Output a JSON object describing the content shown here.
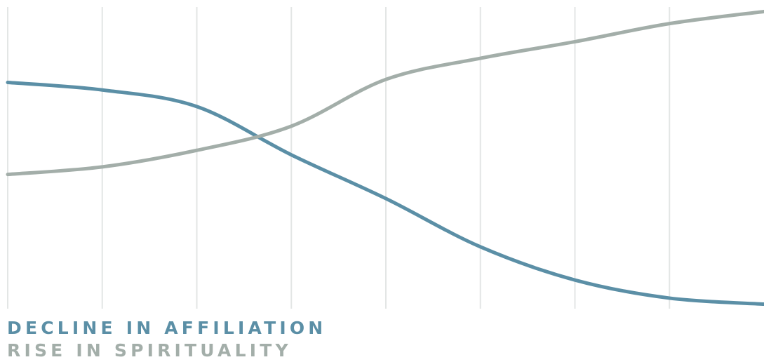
{
  "chart_data": {
    "type": "line",
    "x": [
      0,
      1,
      2,
      3,
      4,
      5,
      6,
      7,
      8
    ],
    "ylim": [
      0,
      100
    ],
    "grid": {
      "vertical": true,
      "horizontal": false
    },
    "legend_position": "bottom-left",
    "series": [
      {
        "name": "DECLINE IN AFFILIATION",
        "color": "#5b8fa6",
        "values": [
          75.0,
          72.5,
          67.0,
          51.0,
          36.5,
          20.5,
          9.5,
          3.5,
          1.5
        ]
      },
      {
        "name": "RISE IN SPIRITUALITY",
        "color": "#a3aea9",
        "values": [
          44.5,
          47.0,
          52.5,
          60.5,
          76.0,
          83.0,
          88.5,
          94.5,
          98.5
        ]
      }
    ]
  }
}
